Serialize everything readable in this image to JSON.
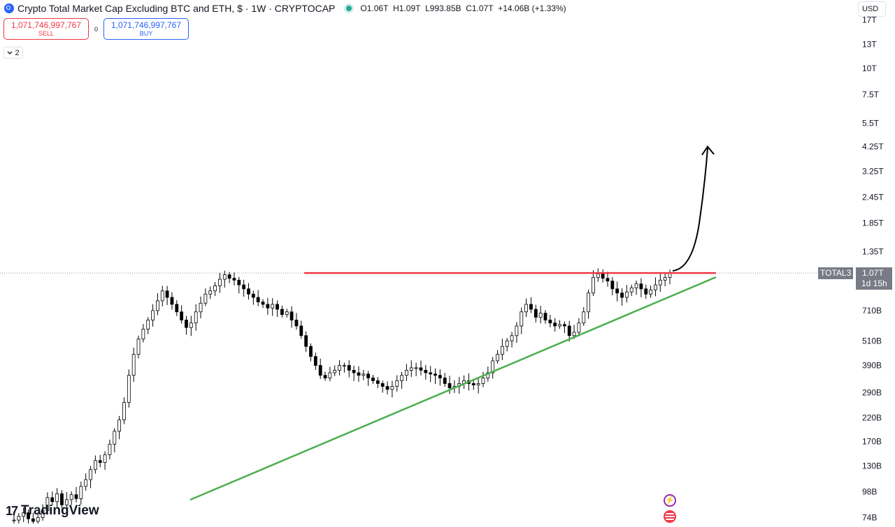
{
  "header": {
    "title": "Crypto Total Market Cap Excluding BTC and ETH, $ · 1W · CRYPTOCAP",
    "open": "O1.06T",
    "high": "H1.09T",
    "low": "L993.85B",
    "close": "C1.07T",
    "change": "+14.06B (+1.33%)"
  },
  "trade": {
    "sell_price": "1,071,746,997,767",
    "sell_label": "SELL",
    "buy_price": "1,071,746,997,767",
    "buy_label": "BUY",
    "spread": "0"
  },
  "indicators_toggle": {
    "count": "2",
    "icon": "chevron-down-icon"
  },
  "currency": "USD",
  "last_price": {
    "symbol": "TOTAL3",
    "value": "1.07T",
    "countdown": "1d 15h"
  },
  "brand": {
    "name": "TradingView"
  },
  "colors": {
    "resistance": "#f23645",
    "support": "#4caf50",
    "candles": "#000000"
  },
  "chart_data": {
    "type": "line",
    "title": "Crypto Total Market Cap Excluding BTC and ETH",
    "y_scale": "log",
    "y_tick_labels": [
      "17T",
      "13T",
      "10T",
      "7.5T",
      "5.5T",
      "4.25T",
      "3.25T",
      "2.45T",
      "1.85T",
      "1.35T",
      "710B",
      "510B",
      "390B",
      "290B",
      "220B",
      "170B",
      "130B",
      "98B",
      "74B"
    ],
    "y_tick_values": [
      17000,
      13000,
      10000,
      7500,
      5500,
      4250,
      3250,
      2450,
      1850,
      1350,
      710,
      510,
      390,
      290,
      220,
      170,
      130,
      98,
      74
    ],
    "ylim": [
      70,
      18000
    ],
    "series": [
      {
        "values": [
          72,
          75,
          78,
          73,
          71,
          74,
          80,
          92,
          88,
          96,
          85,
          90,
          95,
          91,
          104,
          112,
          125,
          138,
          135,
          147,
          165,
          190,
          215,
          260,
          350,
          440,
          520,
          580,
          640,
          710,
          790,
          880,
          820,
          760,
          700,
          640,
          590,
          620,
          700,
          770,
          850,
          880,
          930,
          1000,
          1050,
          1010,
          990,
          940,
          900,
          850,
          820,
          780,
          760,
          730,
          760,
          720,
          680,
          700,
          640,
          600,
          540,
          480,
          430,
          390,
          350,
          340,
          360,
          370,
          390,
          390,
          370,
          360,
          350,
          355,
          340,
          330,
          320,
          310,
          300,
          310,
          330,
          350,
          370,
          380,
          380,
          370,
          360,
          355,
          350,
          340,
          320,
          305,
          310,
          320,
          330,
          320,
          315,
          320,
          340,
          360,
          410,
          440,
          480,
          510,
          540,
          600,
          700,
          760,
          720,
          660,
          690,
          640,
          620,
          600,
          610,
          600,
          540,
          560,
          620,
          700,
          860,
          1020,
          1060,
          1010,
          980,
          900,
          860,
          820,
          870,
          910,
          950,
          900,
          850,
          890,
          940,
          990,
          1020,
          1070
        ]
      }
    ],
    "annotations": [
      {
        "type": "horizontal_resistance",
        "value": 1070
      },
      {
        "type": "rising_support_trendline"
      },
      {
        "type": "projection_arrow",
        "direction": "up"
      }
    ],
    "grid": false,
    "legend": "none"
  }
}
